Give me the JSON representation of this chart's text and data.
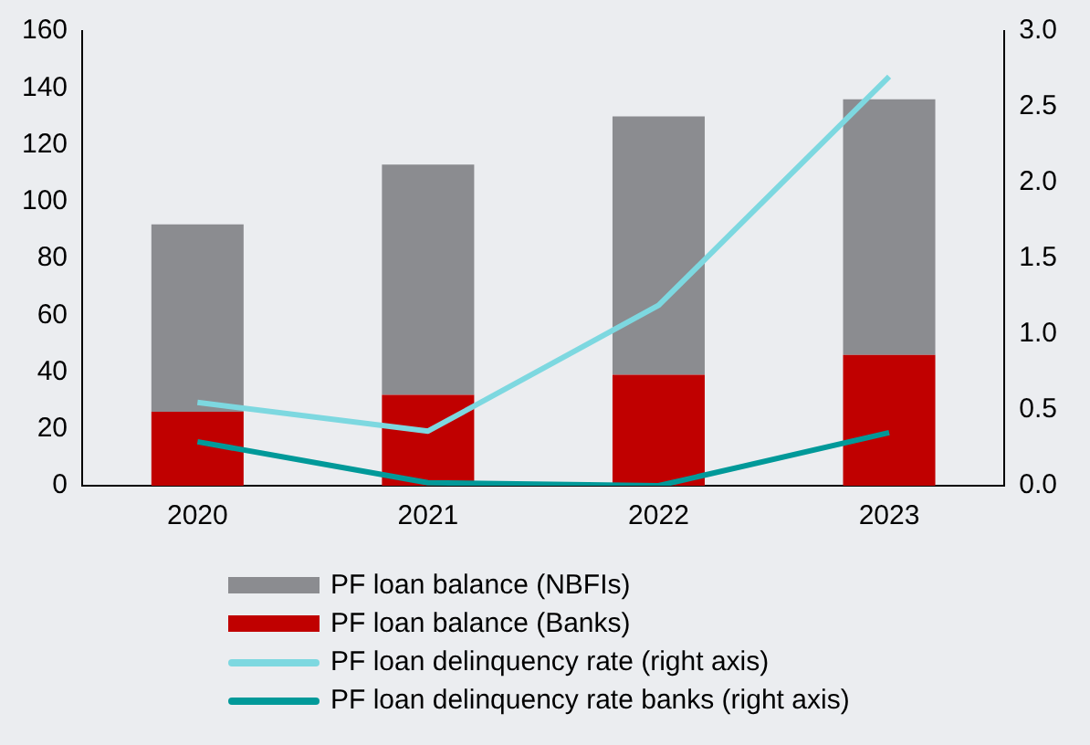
{
  "chart_data": {
    "type": "bar",
    "stacked": true,
    "categories": [
      "2020",
      "2021",
      "2022",
      "2023"
    ],
    "series": [
      {
        "name": "PF loan balance (Banks)",
        "color": "#c00000",
        "values": [
          26,
          32,
          39,
          46
        ]
      },
      {
        "name": "PF loan balance (NBFIs)",
        "color": "#8b8c90",
        "values": [
          66,
          81,
          91,
          90
        ]
      },
      {
        "name": "PF loan delinquency rate (right axis)",
        "type": "line",
        "axis": "y2",
        "color": "#7dd8e0",
        "values": [
          0.55,
          0.36,
          1.19,
          2.7
        ]
      },
      {
        "name": "PF loan delinquency rate banks (right axis)",
        "type": "line",
        "axis": "y2",
        "color": "#009999",
        "values": [
          0.29,
          0.02,
          0.0,
          0.35
        ]
      }
    ],
    "ylim": [
      0,
      160
    ],
    "yticks": [
      0,
      20,
      40,
      60,
      80,
      100,
      120,
      140,
      160
    ],
    "y2lim": [
      0,
      3
    ],
    "y2ticks": [
      {
        "value": 0,
        "label": "0.0"
      },
      {
        "value": 0.5,
        "label": "0.5"
      },
      {
        "value": 1,
        "label": "1.0"
      },
      {
        "value": 1.5,
        "label": "1.5"
      },
      {
        "value": 2,
        "label": "2.0"
      },
      {
        "value": 2.5,
        "label": "2.5"
      },
      {
        "value": 3,
        "label": "3.0"
      }
    ],
    "grid": false,
    "legend": "bottom",
    "marker": "none"
  }
}
